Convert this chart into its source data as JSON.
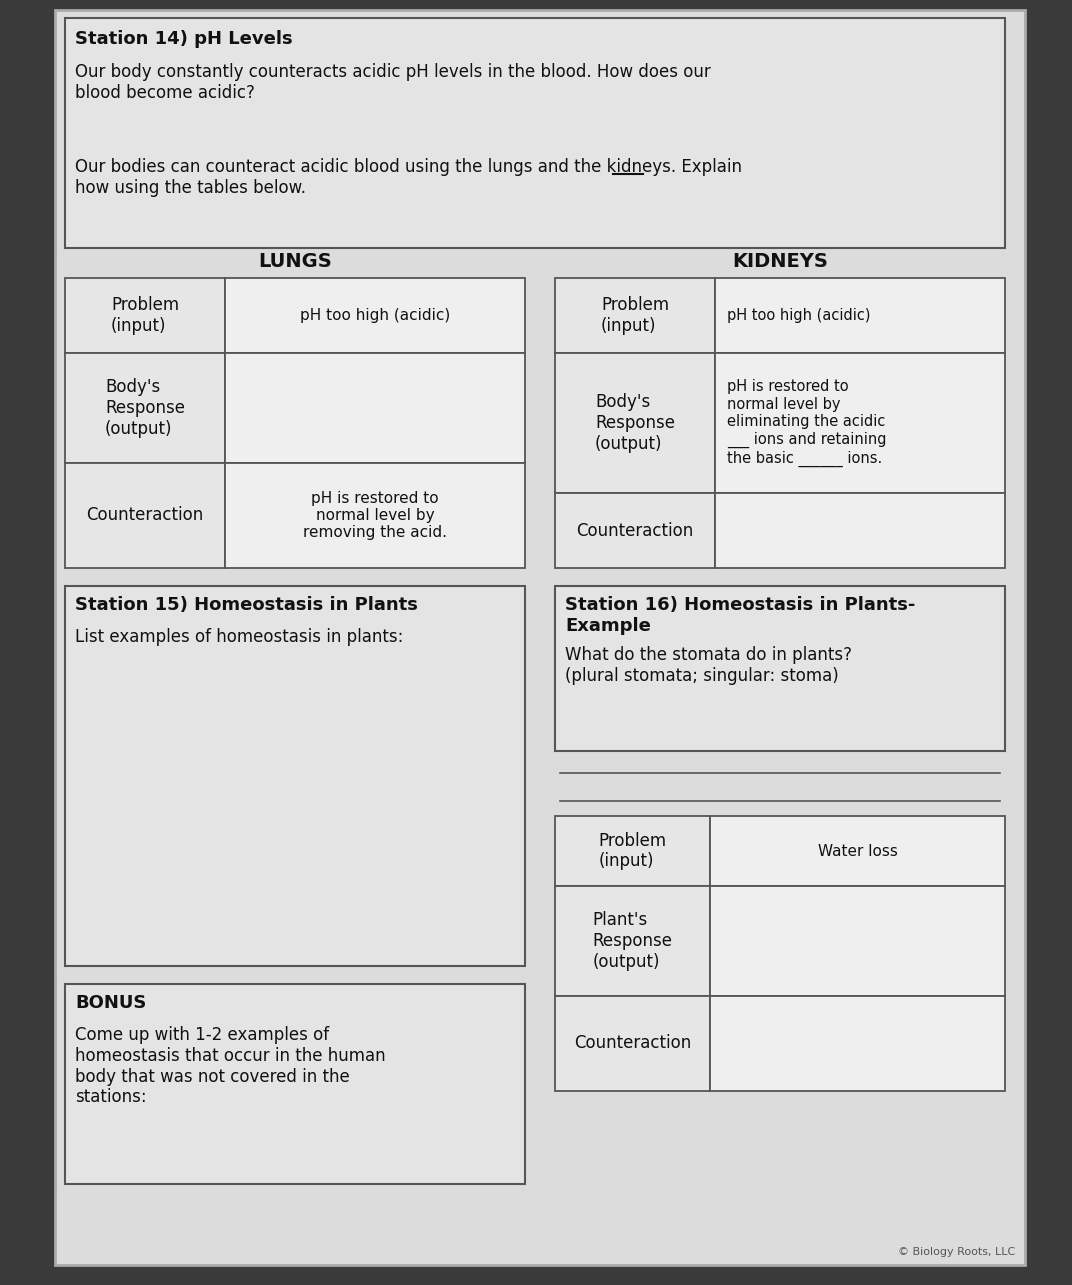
{
  "bg_color": "#3a3a3a",
  "paper_color": "#e0e0e0",
  "cell_bg": "#e8e8e8",
  "cell_bg2": "#f2f2f2",
  "border_color": "#444444",
  "text_color": "#111111",
  "station14_title": "Station 14) pH Levels",
  "station14_text1": "Our body constantly counteracts acidic pH levels in the blood. How does our\nblood become acidic?",
  "station14_text2": "Our bodies can counteract acidic blood using the lungs and the kidneys. Explain\nhow using the tables below.",
  "lungs_header": "LUNGS",
  "kidneys_header": "KIDNEYS",
  "lungs_rows": [
    [
      "Problem\n(input)",
      "pH too high (acidic)"
    ],
    [
      "Body's\nResponse\n(output)",
      ""
    ],
    [
      "Counteraction",
      "pH is restored to\nnormal level by\nremoving the acid."
    ]
  ],
  "kidneys_rows": [
    [
      "Problem\n(input)",
      "pH too high (acidic)"
    ],
    [
      "Body's\nResponse\n(output)",
      "pH is restored to\nnormal level by\neliminating the acidic\n___ ions and retaining\nthe basic ______ ions."
    ],
    [
      "Counteraction",
      ""
    ]
  ],
  "station15_title": "Station 15) Homeostasis in Plants",
  "station15_text": "List examples of homeostasis in plants:",
  "station16_title": "Station 16) Homeostasis in Plants-\nExample",
  "station16_text": "What do the stomata do in plants?\n(plural stomata; singular: stoma)",
  "plants_table_rows": [
    [
      "Problem\n(input)",
      "Water loss"
    ],
    [
      "Plant's\nResponse\n(output)",
      ""
    ],
    [
      "Counteraction",
      ""
    ]
  ],
  "bonus_title": "BONUS",
  "bonus_text": "Come up with 1-2 examples of\nhomeostasis that occur in the human\nbody that was not covered in the\nstations:",
  "copyright": "© Biology Roots, LLC"
}
